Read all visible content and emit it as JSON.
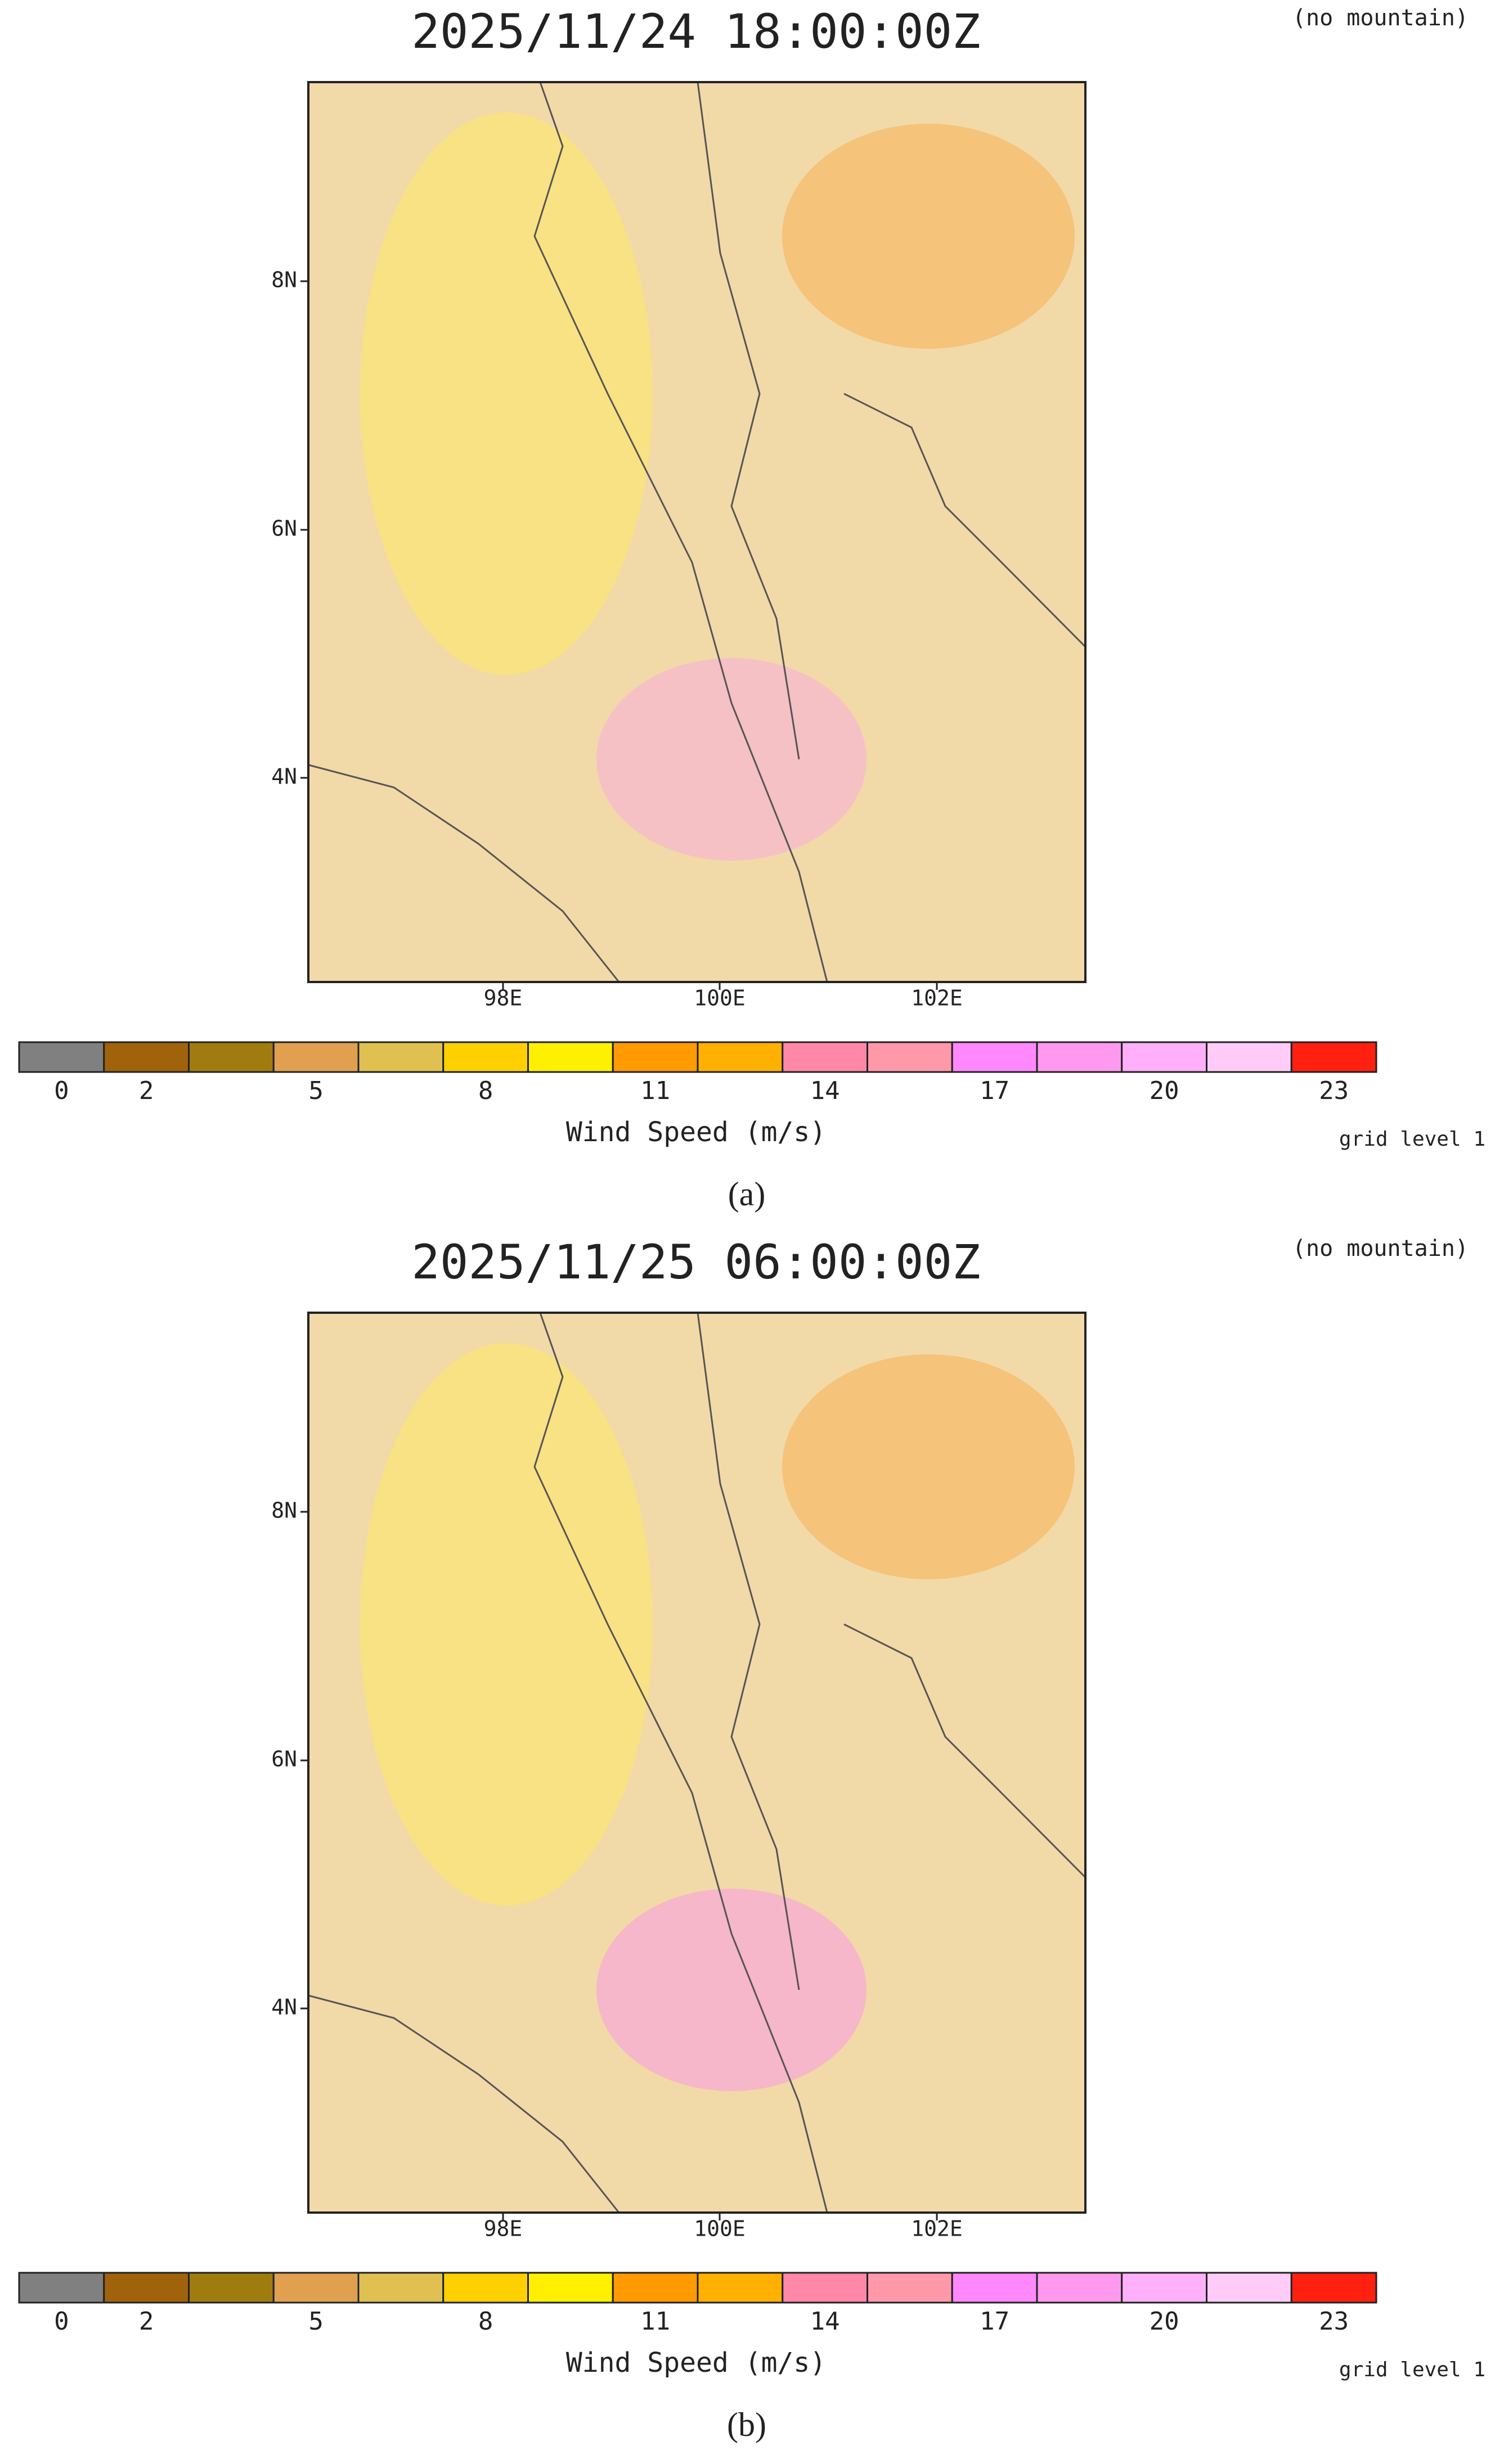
{
  "panels": [
    {
      "title": "2025/11/24 18:00:00Z",
      "note": "(no mountain)",
      "lat_labels": [
        "8N",
        "6N",
        "4N"
      ],
      "lon_labels": [
        "98E",
        "100E",
        "102E"
      ],
      "colorbar": {
        "colors": [
          "#808080",
          "#a0620a",
          "#a07c10",
          "#e0a050",
          "#e0c050",
          "#ffd000",
          "#fff000",
          "#ff9a00",
          "#ffb000",
          "#ff88a8",
          "#ff99aa",
          "#ff88ff",
          "#ff99f0",
          "#ffb0f8",
          "#ffccf8",
          "#ff2010"
        ],
        "labels": [
          "0",
          "2",
          "5",
          "8",
          "11",
          "14",
          "17",
          "20",
          "23"
        ],
        "title": "Wind Speed (m/s)"
      },
      "footnote": "grid level 1",
      "caption": "(a)"
    },
    {
      "title": "2025/11/25 06:00:00Z",
      "note": "(no mountain)",
      "lat_labels": [
        "8N",
        "6N",
        "4N"
      ],
      "lon_labels": [
        "98E",
        "100E",
        "102E"
      ],
      "colorbar": {
        "colors": [
          "#808080",
          "#a0620a",
          "#a07c10",
          "#e0a050",
          "#e0c050",
          "#ffd000",
          "#fff000",
          "#ff9a00",
          "#ffb000",
          "#ff88a8",
          "#ff99aa",
          "#ff88ff",
          "#ff99f0",
          "#ffb0f8",
          "#ffccf8",
          "#ff2010"
        ],
        "labels": [
          "0",
          "2",
          "5",
          "8",
          "11",
          "14",
          "17",
          "20",
          "23"
        ],
        "title": "Wind Speed (m/s)"
      },
      "footnote": "grid level 1",
      "caption": "(b)"
    }
  ]
}
